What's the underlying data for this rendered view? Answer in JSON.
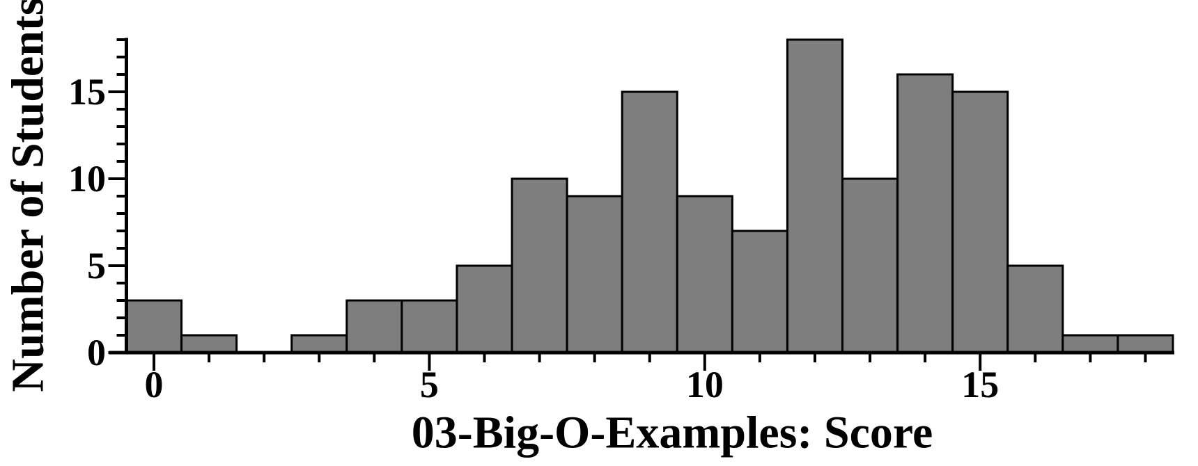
{
  "chart_data": {
    "type": "bar",
    "subtype": "histogram",
    "title": "",
    "xlabel": "03-Big-O-Examples: Score",
    "ylabel": "Number of Students",
    "categories": [
      0,
      1,
      2,
      3,
      4,
      5,
      6,
      7,
      8,
      9,
      10,
      11,
      12,
      13,
      14,
      15,
      16,
      17,
      18
    ],
    "values": [
      3,
      1,
      0,
      1,
      3,
      3,
      5,
      10,
      9,
      15,
      9,
      7,
      18,
      10,
      16,
      15,
      5,
      1,
      1
    ],
    "bar_width": 1,
    "xlim": [
      -0.5,
      18.5
    ],
    "ylim": [
      0,
      18
    ],
    "x_major_ticks": [
      {
        "value": 0,
        "label": "0"
      },
      {
        "value": 5,
        "label": "5"
      },
      {
        "value": 10,
        "label": "10"
      },
      {
        "value": 15,
        "label": "15"
      }
    ],
    "y_major_ticks": [
      {
        "value": 0,
        "label": "0"
      },
      {
        "value": 5,
        "label": "5"
      },
      {
        "value": 10,
        "label": "10"
      },
      {
        "value": 15,
        "label": "15"
      }
    ],
    "x_minor_tick_step": 1,
    "y_minor_tick_step": 1,
    "grid": false,
    "legend_position": "none",
    "colors": {
      "bar_fill": "#7e7e7e",
      "bar_stroke": "#000000",
      "axis": "#000000",
      "text": "#000000",
      "background": "#ffffff"
    }
  }
}
